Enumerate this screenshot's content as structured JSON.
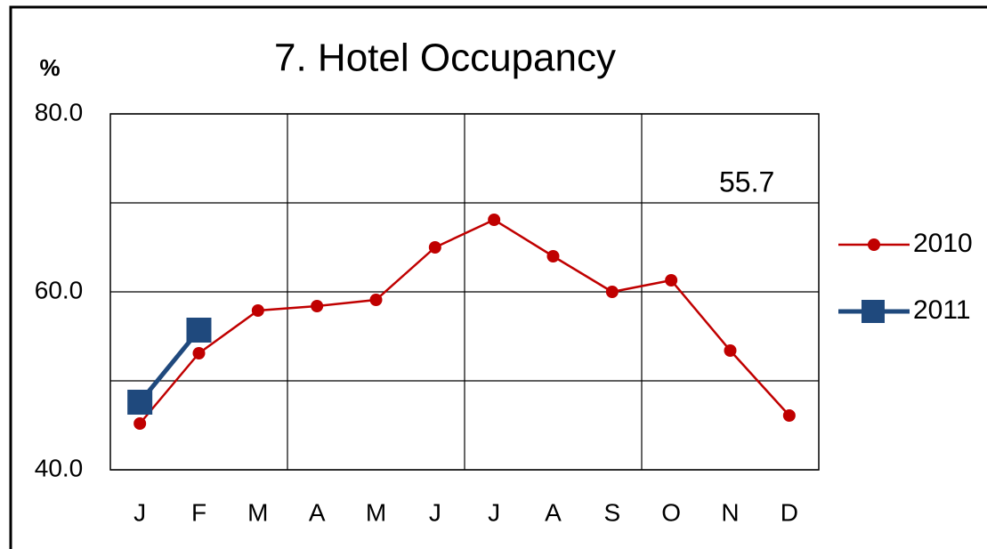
{
  "chart_data": {
    "type": "line",
    "title": "7. Hotel Occupancy",
    "y_label": "%",
    "categories": [
      "J",
      "F",
      "M",
      "A",
      "M",
      "J",
      "J",
      "A",
      "S",
      "O",
      "N",
      "D"
    ],
    "series": [
      {
        "name": "2010",
        "color": "#c00000",
        "marker": "circle",
        "values": [
          45.2,
          53.1,
          57.9,
          58.4,
          59.1,
          65.0,
          68.1,
          64.0,
          60.0,
          61.3,
          53.4,
          46.1
        ]
      },
      {
        "name": "2011",
        "color": "#1f497d",
        "marker": "square",
        "values": [
          47.6,
          55.7,
          null,
          null,
          null,
          null,
          null,
          null,
          null,
          null,
          null,
          null
        ]
      }
    ],
    "annotation": "55.7",
    "ylim": [
      40,
      80
    ],
    "yticks": [
      {
        "value": 40,
        "label": "40.0"
      },
      {
        "value": 60,
        "label": "60.0"
      },
      {
        "value": 80,
        "label": "80.0"
      }
    ],
    "ygrid": [
      50,
      70
    ],
    "xgrid_every": 3,
    "grid": true,
    "legend": "right"
  }
}
